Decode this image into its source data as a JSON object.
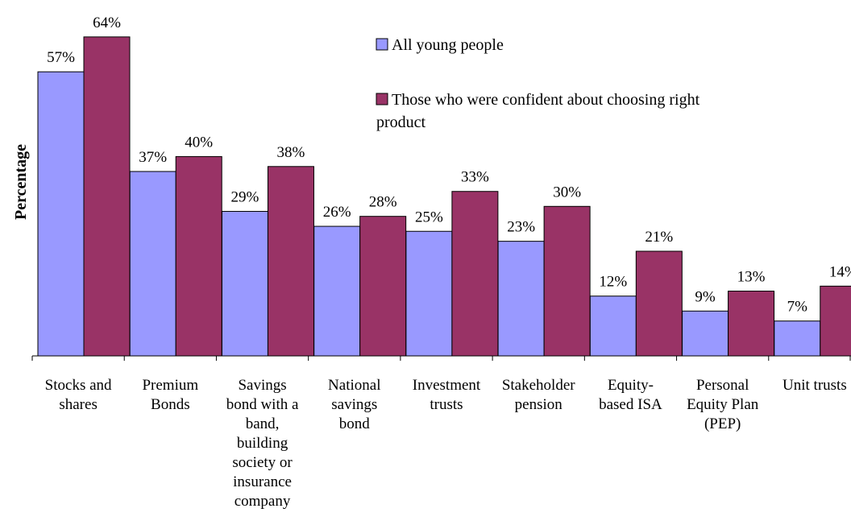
{
  "chart_data": {
    "type": "bar",
    "title": "",
    "xlabel": "",
    "ylabel": "Percentage",
    "ylim": [
      0,
      70
    ],
    "grid": false,
    "legend_position": "top-right",
    "value_suffix": "%",
    "categories": [
      [
        "Stocks and",
        "shares"
      ],
      [
        "Premium",
        "Bonds"
      ],
      [
        "Savings",
        "bond with a",
        "band,",
        "building",
        "society or",
        "insurance",
        "company"
      ],
      [
        "National",
        "savings",
        "bond"
      ],
      [
        "Investment",
        "trusts"
      ],
      [
        "Stakeholder",
        "pension"
      ],
      [
        "Equity-",
        "based ISA"
      ],
      [
        "Personal",
        "Equity Plan",
        "(PEP)"
      ],
      [
        "Unit trusts"
      ]
    ],
    "series": [
      {
        "name": "All young people",
        "color": "#9999ff",
        "values": [
          57,
          37,
          29,
          26,
          25,
          23,
          12,
          9,
          7
        ]
      },
      {
        "name": [
          "Those who were confident about choosing right",
          "product"
        ],
        "color": "#993366",
        "values": [
          64,
          40,
          38,
          28,
          33,
          30,
          21,
          13,
          14
        ]
      }
    ]
  }
}
